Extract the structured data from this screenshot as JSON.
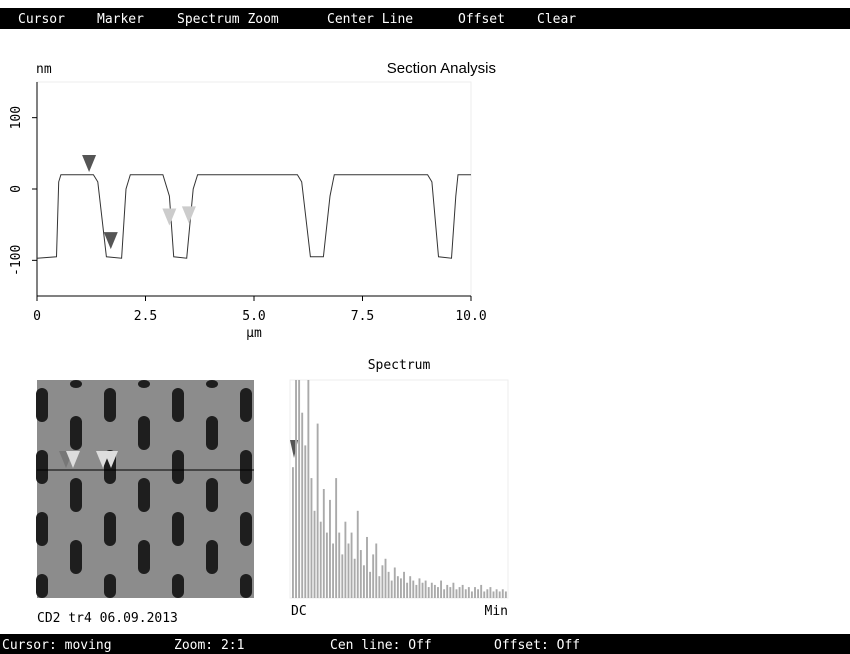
{
  "menu": [
    "Cursor",
    "Marker",
    "Spectrum Zoom",
    "Center Line",
    "Offset",
    "Clear"
  ],
  "profile": {
    "title": "Section Analysis",
    "y_unit": "nm",
    "x_label": "µm",
    "xlim": [
      0,
      10
    ],
    "ylim": [
      -150,
      150
    ],
    "xticks": [
      0,
      2.5,
      {
        "value": 5,
        "label": "5.0"
      },
      7.5,
      {
        "value": 10,
        "label": "10.0"
      }
    ],
    "yticks": [
      -100,
      0,
      100
    ],
    "x": [
      0,
      0.45,
      0.5,
      0.55,
      1.3,
      1.4,
      1.6,
      1.95,
      2.05,
      2.15,
      2.9,
      3.05,
      3.15,
      3.45,
      3.6,
      3.7,
      6.0,
      6.1,
      6.3,
      6.6,
      6.75,
      6.85,
      9.0,
      9.1,
      9.25,
      9.55,
      9.65,
      9.7,
      10
    ],
    "values": [
      -97,
      -95,
      10,
      20,
      20,
      10,
      -95,
      -97,
      0,
      20,
      20,
      -10,
      -95,
      -97,
      0,
      20,
      20,
      10,
      -95,
      -95,
      -10,
      20,
      20,
      10,
      -95,
      -97,
      -10,
      20,
      20
    ],
    "markers": [
      {
        "x": 1.2,
        "y": 35,
        "color": "#555555"
      },
      {
        "x": 1.7,
        "y": -73,
        "color": "#555555"
      },
      {
        "x": 3.05,
        "y": -40,
        "color": "#cccccc"
      },
      {
        "x": 3.5,
        "y": -37,
        "color": "#cccccc"
      }
    ]
  },
  "image": {
    "caption": "CD2 tr4 06.09.2013"
  },
  "spectrum": {
    "title": "Spectrum",
    "left_label": "DC",
    "right_label": "Min",
    "ylim": [
      0,
      100
    ],
    "values": [
      60,
      100,
      100,
      85,
      70,
      100,
      55,
      40,
      80,
      35,
      50,
      30,
      45,
      25,
      55,
      30,
      20,
      35,
      25,
      30,
      18,
      40,
      22,
      15,
      28,
      12,
      20,
      25,
      10,
      15,
      18,
      12,
      8,
      14,
      10,
      9,
      12,
      7,
      10,
      8,
      6,
      9,
      7,
      8,
      5,
      7,
      6,
      5,
      8,
      4,
      6,
      5,
      7,
      4,
      5,
      6,
      4,
      5,
      3,
      5,
      4,
      6,
      3,
      4,
      5,
      3,
      4,
      3,
      4,
      3
    ]
  },
  "status": [
    "Cursor: moving",
    "Zoom: 2:1",
    "Cen line: Off",
    "Offset: Off"
  ]
}
